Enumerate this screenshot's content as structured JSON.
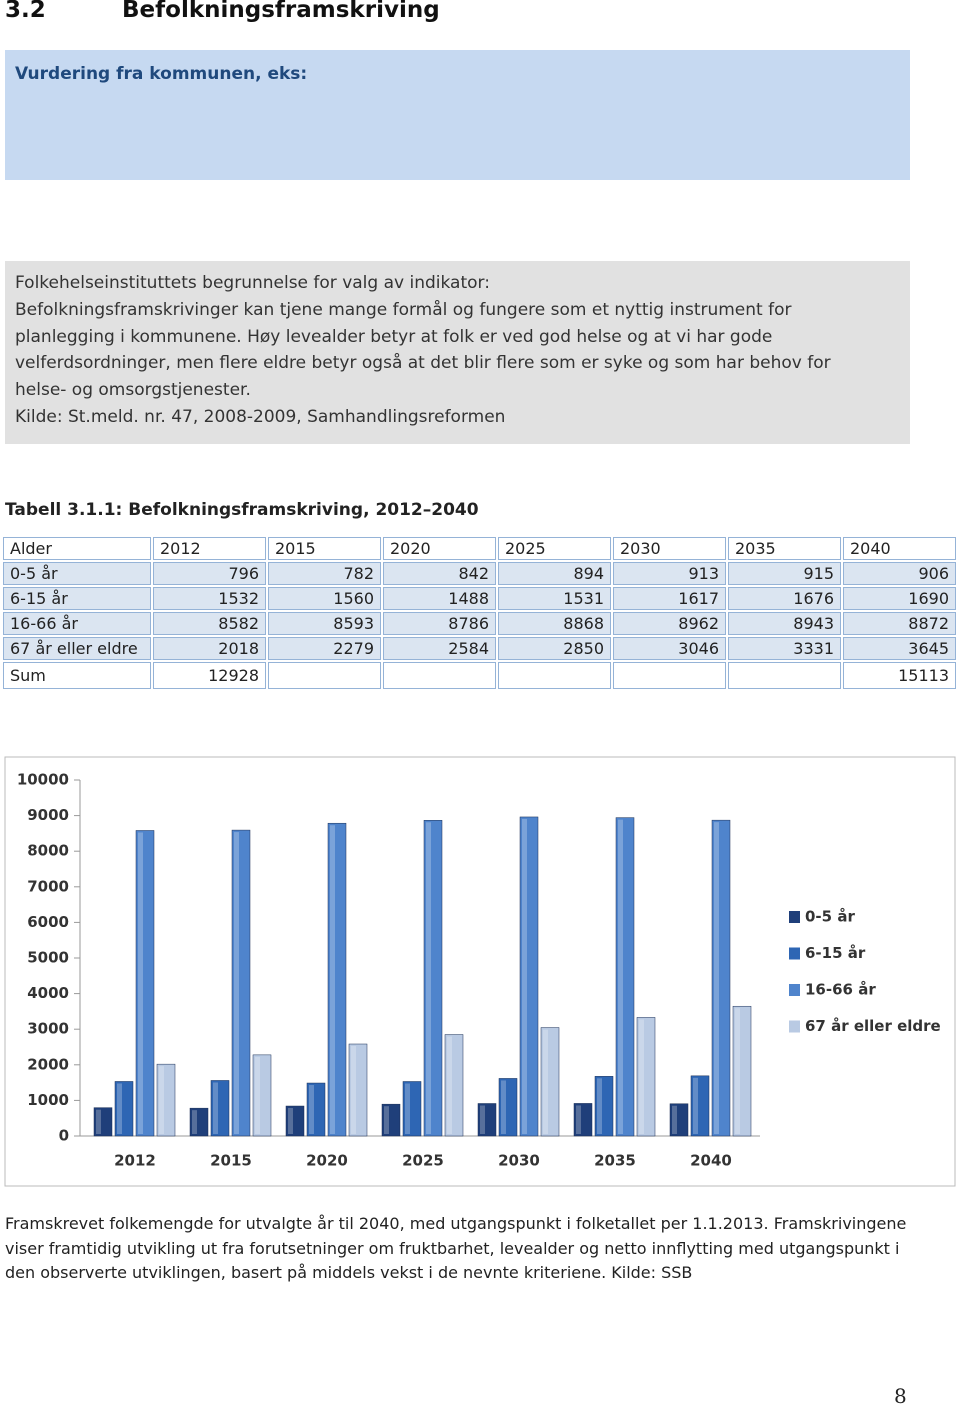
{
  "heading": {
    "number": "3.2",
    "title": "Befolkningsframskriving"
  },
  "assessment_box": {
    "text": "Vurdering fra kommunen, eks:"
  },
  "indicator_box": {
    "lines": [
      "Folkehelseinstituttets begrunnelse for valg av indikator:",
      "Befolkningsframskrivinger kan tjene mange formål og fungere som et nyttig instrument for",
      "planlegging i kommunene. Høy levealder betyr at folk er ved god helse og at vi har gode",
      "velferdsordninger, men flere eldre betyr også at det blir flere som er syke og som har behov for",
      "helse- og omsorgstjenester.",
      "Kilde: St.meld. nr. 47, 2008-2009, Samhandlingsreformen"
    ]
  },
  "table": {
    "caption": "Tabell 3.1.1: Befolkningsframskriving, 2012–2040",
    "header": [
      "Alder",
      "2012",
      "2015",
      "2020",
      "2025",
      "2030",
      "2035",
      "2040"
    ],
    "rows": [
      [
        "0-5 år",
        796,
        782,
        842,
        894,
        913,
        915,
        906
      ],
      [
        "6-15 år",
        1532,
        1560,
        1488,
        1531,
        1617,
        1676,
        1690
      ],
      [
        "16-66 år",
        8582,
        8593,
        8786,
        8868,
        8962,
        8943,
        8872
      ],
      [
        "67 år eller eldre",
        2018,
        2279,
        2584,
        2850,
        3046,
        3331,
        3645
      ],
      [
        "Sum",
        12928,
        null,
        null,
        null,
        null,
        null,
        15113
      ]
    ]
  },
  "chart_data": {
    "type": "bar",
    "categories": [
      "2012",
      "2015",
      "2020",
      "2025",
      "2030",
      "2035",
      "2040"
    ],
    "series": [
      {
        "name": "0-5 år",
        "color": "#1f3f7a",
        "values": [
          796,
          782,
          842,
          894,
          913,
          915,
          906
        ]
      },
      {
        "name": "6-15 år",
        "color": "#2e66b4",
        "values": [
          1532,
          1560,
          1488,
          1531,
          1617,
          1676,
          1690
        ]
      },
      {
        "name": "16-66 år",
        "color": "#4f84cc",
        "values": [
          8582,
          8593,
          8786,
          8868,
          8962,
          8943,
          8872
        ]
      },
      {
        "name": "67 år eller eldre",
        "color": "#b9cae3",
        "values": [
          2018,
          2279,
          2584,
          2850,
          3046,
          3331,
          3645
        ]
      }
    ],
    "ylim": [
      0,
      10000
    ],
    "yticks": [
      0,
      1000,
      2000,
      3000,
      4000,
      5000,
      6000,
      7000,
      8000,
      9000,
      10000
    ],
    "legend": "right"
  },
  "caption": {
    "lines": [
      "Framskrevet folkemengde for utvalgte år til 2040, med utgangspunkt i folketallet per 1.1.2013. Framskrivingene",
      "viser framtidig utvikling ut fra forutsetninger om fruktbarhet, levealder og netto innflytting med utgangspunkt i",
      "den observerte utviklingen, basert på middels vekst i de nevnte kriteriene. Kilde: SSB"
    ]
  },
  "page_number": "8"
}
